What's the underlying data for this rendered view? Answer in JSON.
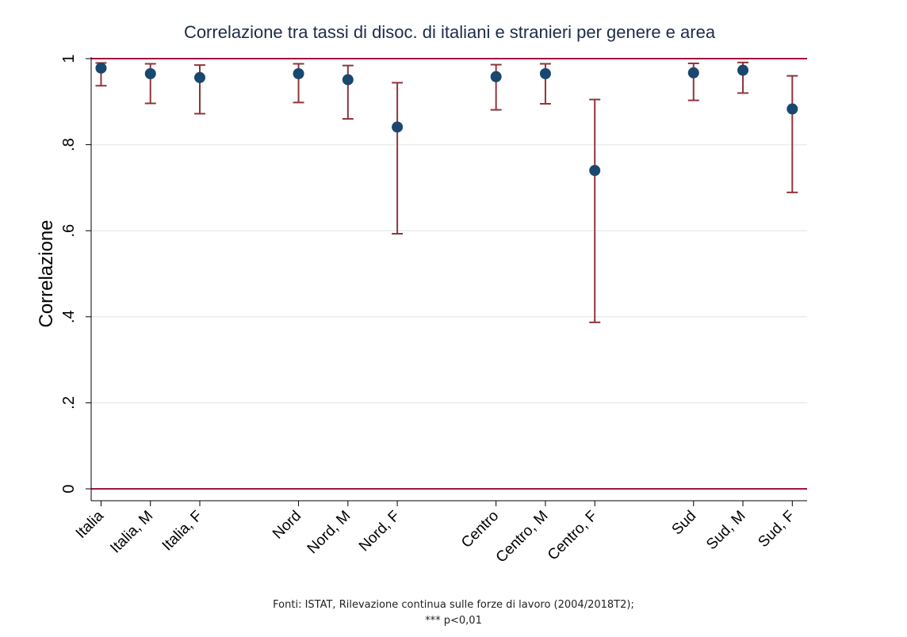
{
  "chart_data": {
    "type": "scatter",
    "title": "Correlazione tra tassi di disoc. di italiani e stranieri per genere e area",
    "ylabel": "Correlazione",
    "xlabel": "",
    "ylim": [
      0,
      1
    ],
    "yticks": [
      {
        "value": 0,
        "label": "0"
      },
      {
        "value": 0.2,
        "label": ".2"
      },
      {
        "value": 0.4,
        "label": ".4"
      },
      {
        "value": 0.6,
        "label": ".6"
      },
      {
        "value": 0.8,
        "label": ".8"
      },
      {
        "value": 1,
        "label": "1"
      }
    ],
    "reference_lines": [
      0,
      1
    ],
    "grid": true,
    "categories": [
      "Italia",
      "Italia, M",
      "Italia, F",
      "Nord",
      "Nord, M",
      "Nord, F",
      "Centro",
      "Centro, M",
      "Centro, F",
      "Sud",
      "Sud, M",
      "Sud, F"
    ],
    "x": [
      1,
      2,
      3,
      5,
      6,
      7,
      9,
      10,
      11,
      13,
      14,
      15
    ],
    "values": [
      0.978,
      0.965,
      0.956,
      0.965,
      0.951,
      0.841,
      0.958,
      0.965,
      0.74,
      0.967,
      0.973,
      0.883
    ],
    "lower": [
      0.937,
      0.896,
      0.872,
      0.898,
      0.86,
      0.593,
      0.881,
      0.895,
      0.387,
      0.903,
      0.92,
      0.689
    ],
    "upper": [
      0.99,
      0.988,
      0.985,
      0.988,
      0.984,
      0.944,
      0.986,
      0.988,
      0.905,
      0.989,
      0.991,
      0.96
    ],
    "colors": {
      "marker": "#1a476f",
      "ci": "#90353b",
      "refline": "#a0153e",
      "grid": "#e8ecef",
      "title": "#1e2b4a"
    }
  },
  "source": {
    "line1": "Fonti: ISTAT,  Rilevazione continua sulle forze di lavoro (2004/2018T2);",
    "line2": "*** p<0,01"
  }
}
